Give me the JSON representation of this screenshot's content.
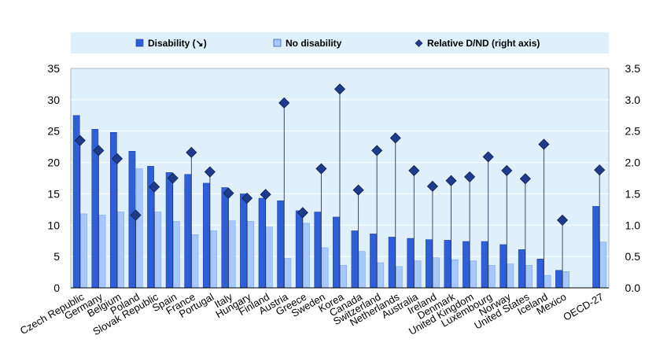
{
  "chart_data": {
    "type": "bar",
    "categories": [
      "Czech Republic",
      "Germany",
      "Belgium",
      "Poland",
      "Slovak Republic",
      "Spain",
      "France",
      "Portugal",
      "Italy",
      "Hungary",
      "Finland",
      "Austria",
      "Greece",
      "Sweden",
      "Korea",
      "Canada",
      "Switzerland",
      "Netherlands",
      "Australia",
      "Ireland",
      "Denmark",
      "United Kingdom",
      "Luxembourg",
      "Norway",
      "United States",
      "Iceland",
      "Mexico",
      "",
      "OECD-27"
    ],
    "series": [
      {
        "name": "Disability (↘)",
        "color": "#2e5fd6",
        "axis": "left",
        "values": [
          27.5,
          25.3,
          24.8,
          21.8,
          19.4,
          18.4,
          18.1,
          16.7,
          16.0,
          15.0,
          14.3,
          13.9,
          12.3,
          12.1,
          11.3,
          9.1,
          8.6,
          8.1,
          7.9,
          7.7,
          7.6,
          7.4,
          7.4,
          6.9,
          6.1,
          4.6,
          2.8,
          null,
          13.0
        ]
      },
      {
        "name": "No disability",
        "color": "#a6c8ff",
        "axis": "left",
        "values": [
          11.8,
          11.6,
          12.1,
          19.0,
          12.1,
          10.6,
          8.5,
          9.1,
          10.7,
          10.6,
          9.7,
          4.7,
          10.3,
          6.4,
          3.6,
          5.8,
          4.0,
          3.4,
          4.3,
          4.8,
          4.5,
          4.3,
          3.6,
          3.8,
          3.6,
          2.0,
          2.6,
          null,
          7.3
        ]
      },
      {
        "name": "Relative D/ND (right axis)",
        "type": "scatter",
        "color": "#1f3b8c",
        "axis": "right",
        "values": [
          2.35,
          2.19,
          2.06,
          1.16,
          1.61,
          1.75,
          2.16,
          1.85,
          1.51,
          1.43,
          1.49,
          2.95,
          1.2,
          1.9,
          3.17,
          1.56,
          2.19,
          2.39,
          1.87,
          1.62,
          1.71,
          1.77,
          2.09,
          1.87,
          1.74,
          2.29,
          1.08,
          null,
          1.88
        ]
      }
    ],
    "yleft": {
      "ticks": [
        "0",
        "5",
        "10",
        "15",
        "20",
        "25",
        "30",
        "35"
      ],
      "lim": [
        0,
        35
      ]
    },
    "yright": {
      "ticks": [
        "0.0",
        "0.5",
        "1.0",
        "1.5",
        "2.0",
        "2.5",
        "3.0",
        "3.5"
      ],
      "lim": [
        0,
        3.5
      ]
    },
    "legend_position": "top",
    "plot_background": "#dff0fb",
    "legend_background": "#dff0fb"
  }
}
